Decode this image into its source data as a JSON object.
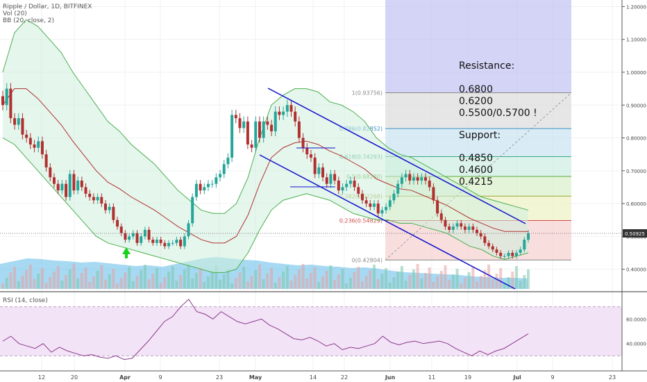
{
  "header": {
    "symbol_line": "Ripple / Dollar, 1D, BITFINEX",
    "indicator_vol": "Vol (20)",
    "indicator_bb": "BB (20, close, 2)",
    "indicator_rsi": "RSI (14, close)"
  },
  "price_axis": {
    "ticks": [
      "1.20000",
      "1.10000",
      "1.00000",
      "0.90000",
      "0.80000",
      "0.70000",
      "0.60000",
      "0.50000",
      "0.40000"
    ],
    "current_price": "0.50925"
  },
  "rsi_axis": {
    "ticks": [
      "60.0000",
      "40.0000"
    ]
  },
  "time_axis": {
    "ticks": [
      "12",
      "20",
      "Apr",
      "9",
      "23",
      "May",
      "14",
      "22",
      "Jun",
      "11",
      "19",
      "Jul",
      "9",
      "23"
    ]
  },
  "annotations": {
    "resistance_title": "Resistance:",
    "resistance_levels": [
      "0.6800",
      "0.6200",
      "0.5500/0.5700 !"
    ],
    "support_title": "Support:",
    "support_levels": [
      "0.4850",
      "0.4600",
      "0.4215"
    ]
  },
  "fib_labels": [
    "1(0.93756)",
    "0.786(0.82852)",
    "0.618(0.74293)",
    "0.5(0.68280)",
    "0.382(0.62268)",
    "0.236(0.54829)",
    "0(0.42804)"
  ],
  "colors": {
    "up": "#26a69a",
    "down": "#b03030",
    "bb_band": "#4caf50",
    "bb_basis": "#b03030",
    "channel": "#1010cc",
    "rsi": "#8a3a8a",
    "volume": "#5fb9e8"
  },
  "chart_data": {
    "type": "candlestick",
    "title": "Ripple / Dollar, 1D, BITFINEX",
    "price_range": [
      0.34,
      1.22
    ],
    "rsi_range": [
      20,
      80
    ],
    "fibonacci": [
      {
        "ratio": 1,
        "price": 0.93756
      },
      {
        "ratio": 0.786,
        "price": 0.82852
      },
      {
        "ratio": 0.618,
        "price": 0.74293
      },
      {
        "ratio": 0.5,
        "price": 0.6828
      },
      {
        "ratio": 0.382,
        "price": 0.62268
      },
      {
        "ratio": 0.236,
        "price": 0.54829
      },
      {
        "ratio": 0,
        "price": 0.42804
      }
    ],
    "resistance": [
      0.68,
      0.62,
      0.55,
      0.57
    ],
    "support": [
      0.485,
      0.46,
      0.4215
    ],
    "close": [
      0.9,
      0.95,
      0.86,
      0.84,
      0.86,
      0.81,
      0.8,
      0.78,
      0.77,
      0.79,
      0.75,
      0.71,
      0.68,
      0.66,
      0.64,
      0.66,
      0.62,
      0.69,
      0.64,
      0.67,
      0.65,
      0.63,
      0.62,
      0.61,
      0.62,
      0.6,
      0.58,
      0.59,
      0.55,
      0.53,
      0.51,
      0.49,
      0.5,
      0.51,
      0.48,
      0.5,
      0.52,
      0.49,
      0.48,
      0.49,
      0.48,
      0.47,
      0.48,
      0.48,
      0.49,
      0.47,
      0.5,
      0.54,
      0.62,
      0.66,
      0.64,
      0.65,
      0.66,
      0.66,
      0.68,
      0.69,
      0.72,
      0.74,
      0.87,
      0.86,
      0.83,
      0.85,
      0.78,
      0.77,
      0.85,
      0.8,
      0.85,
      0.84,
      0.82,
      0.88,
      0.87,
      0.88,
      0.9,
      0.88,
      0.85,
      0.8,
      0.77,
      0.75,
      0.74,
      0.69,
      0.71,
      0.68,
      0.66,
      0.69,
      0.67,
      0.64,
      0.65,
      0.66,
      0.67,
      0.65,
      0.63,
      0.61,
      0.6,
      0.59,
      0.6,
      0.57,
      0.58,
      0.59,
      0.61,
      0.63,
      0.66,
      0.68,
      0.69,
      0.67,
      0.68,
      0.67,
      0.68,
      0.67,
      0.65,
      0.61,
      0.57,
      0.55,
      0.53,
      0.52,
      0.53,
      0.54,
      0.53,
      0.52,
      0.53,
      0.52,
      0.51,
      0.5,
      0.48,
      0.47,
      0.46,
      0.45,
      0.44,
      0.44,
      0.45,
      0.44,
      0.45,
      0.46,
      0.49,
      0.51
    ],
    "bb_upper": [
      1.0,
      1.12,
      1.16,
      1.14,
      1.1,
      1.06,
      1.0,
      0.95,
      0.9,
      0.85,
      0.82,
      0.78,
      0.75,
      0.72,
      0.68,
      0.64,
      0.61,
      0.58,
      0.57,
      0.57,
      0.6,
      0.68,
      0.8,
      0.9,
      0.93,
      0.95,
      0.95,
      0.94,
      0.91,
      0.9,
      0.88,
      0.85,
      0.8,
      0.77,
      0.75,
      0.74,
      0.72,
      0.7,
      0.68,
      0.66,
      0.64,
      0.62,
      0.61,
      0.6,
      0.59,
      0.58
    ],
    "bb_lower": [
      0.8,
      0.78,
      0.74,
      0.7,
      0.66,
      0.62,
      0.58,
      0.54,
      0.5,
      0.48,
      0.47,
      0.46,
      0.45,
      0.44,
      0.43,
      0.42,
      0.41,
      0.4,
      0.39,
      0.39,
      0.4,
      0.45,
      0.52,
      0.58,
      0.61,
      0.62,
      0.63,
      0.62,
      0.61,
      0.59,
      0.57,
      0.56,
      0.55,
      0.55,
      0.54,
      0.54,
      0.53,
      0.52,
      0.51,
      0.49,
      0.47,
      0.46,
      0.44,
      0.43,
      0.44,
      0.45
    ],
    "rsi": [
      42,
      46,
      40,
      38,
      36,
      40,
      33,
      37,
      34,
      32,
      30,
      31,
      29,
      28,
      30,
      27,
      28,
      35,
      42,
      50,
      58,
      62,
      70,
      76,
      66,
      64,
      60,
      66,
      62,
      58,
      56,
      58,
      60,
      55,
      52,
      48,
      44,
      43,
      45,
      42,
      38,
      40,
      35,
      37,
      36,
      38,
      40,
      46,
      41,
      39,
      41,
      42,
      40,
      41,
      42,
      40,
      36,
      33,
      30,
      34,
      31,
      34,
      36,
      40,
      44,
      48
    ]
  }
}
